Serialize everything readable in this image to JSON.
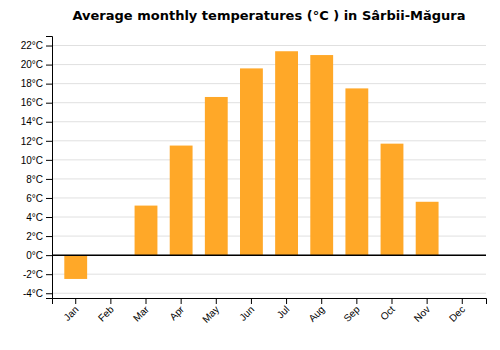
{
  "chart_data": {
    "type": "bar",
    "title": "Average monthly temperatures (°C ) in Sârbii-Măgura",
    "categories": [
      "Jan",
      "Feb",
      "Mar",
      "Apr",
      "May",
      "Jun",
      "Jul",
      "Aug",
      "Sep",
      "Oct",
      "Nov",
      "Dec"
    ],
    "values": [
      -2.5,
      0.0,
      5.2,
      11.5,
      16.6,
      19.6,
      21.4,
      21.0,
      17.5,
      11.7,
      5.6,
      0.0
    ],
    "color": "#FFA828",
    "ylim": [
      -4.5,
      23
    ],
    "yticks": [
      {
        "value": -4,
        "label": "-4°C"
      },
      {
        "value": -2,
        "label": "-2°C"
      },
      {
        "value": 0,
        "label": "0°C"
      },
      {
        "value": 2,
        "label": "2°C"
      },
      {
        "value": 4,
        "label": "4°C"
      },
      {
        "value": 6,
        "label": "6°C"
      },
      {
        "value": 8,
        "label": "8°C"
      },
      {
        "value": 10,
        "label": "10°C"
      },
      {
        "value": 12,
        "label": "12°C"
      },
      {
        "value": 14,
        "label": "14°C"
      },
      {
        "value": 16,
        "label": "16°C"
      },
      {
        "value": 18,
        "label": "18°C"
      },
      {
        "value": 20,
        "label": "20°C"
      },
      {
        "value": 22,
        "label": "22°C"
      }
    ],
    "grid": true
  }
}
